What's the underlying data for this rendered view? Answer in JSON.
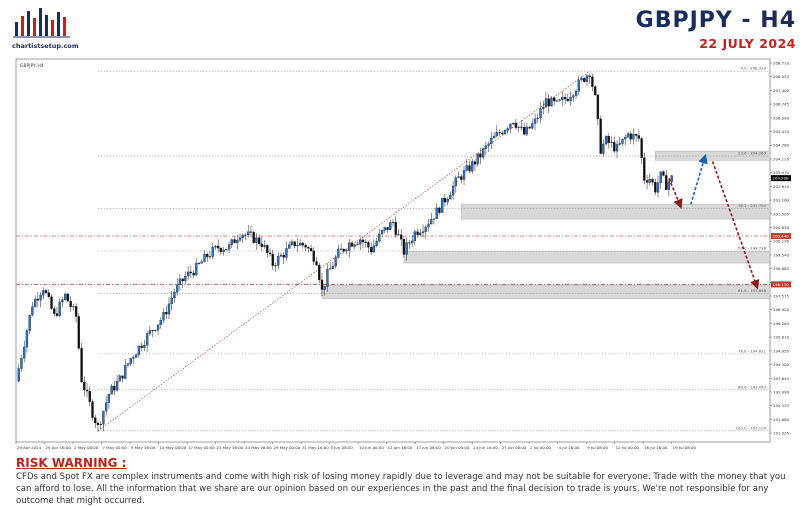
{
  "brand": {
    "logo_text": "chartistsetup.com"
  },
  "header": {
    "title": "GBPJPY - H4",
    "date": "22 JULY 2024"
  },
  "chart_data": {
    "type": "candlestick",
    "symbol_label": "GBPJPY,H4",
    "ylim": [
      190.6,
      208.9
    ],
    "y_ticks": [
      "208.710",
      "208.055",
      "207.400",
      "206.745",
      "206.090",
      "205.435",
      "204.780",
      "204.125",
      "203.470",
      "202.815",
      "202.160",
      "201.505",
      "200.850",
      "200.195",
      "199.540",
      "198.885",
      "198.230",
      "197.575",
      "196.920",
      "196.265",
      "195.610",
      "194.955",
      "194.300",
      "193.645",
      "192.990",
      "192.335",
      "191.680",
      "191.025"
    ],
    "x_ticks": [
      "29 Apr 2024",
      "29 Apr 16:00",
      "2 May 08:00",
      "7 May 00:00",
      "9 May 16:00",
      "14 May 08:00",
      "17 May 00:00",
      "21 May 16:00",
      "24 May 08:00",
      "29 May 00:00",
      "31 May 16:00",
      "5 Jun 08:00",
      "10 Jun 00:00",
      "12 Jun 16:00",
      "17 Jun 08:00",
      "20 Jun 00:00",
      "24 Jun 16:00",
      "27 Jun 08:00",
      "2 Jul 00:00",
      "4 Jul 16:00",
      "9 Jul 08:00",
      "12 Jul 00:00",
      "16 Jul 16:00",
      "19 Jul 08:00"
    ],
    "price_tags": [
      {
        "value": 203.208,
        "label": "203.208",
        "color": "#000000"
      },
      {
        "value": 200.44,
        "label": "200.440",
        "color": "#c0392b"
      },
      {
        "value": 198.13,
        "label": "198.130",
        "color": "#c0392b"
      }
    ],
    "fib_levels": [
      {
        "label": "0.0 - 208.320",
        "value": 208.32
      },
      {
        "label": "23.6 - 204.263",
        "value": 204.263
      },
      {
        "label": "38.2 - 201.754",
        "value": 201.754
      },
      {
        "label": "50.0 - 199.726",
        "value": 199.726
      },
      {
        "label": "61.8 - 197.698",
        "value": 197.698
      },
      {
        "label": "78.6 - 194.811",
        "value": 194.811
      },
      {
        "label": "88.6 - 193.093",
        "value": 193.093
      },
      {
        "label": "100.0 - 191.134",
        "value": 191.134
      }
    ],
    "zones": [
      {
        "from": 204.06,
        "to": 204.5
      },
      {
        "from": 201.25,
        "to": 201.95
      },
      {
        "from": 199.15,
        "to": 199.7
      },
      {
        "from": 197.45,
        "to": 198.1
      }
    ],
    "horizontal_lines": [
      200.44,
      198.13
    ],
    "price_path": [
      [
        0,
        193.5
      ],
      [
        3,
        197.2
      ],
      [
        5,
        198.0
      ],
      [
        7,
        196.6
      ],
      [
        9,
        197.6
      ],
      [
        11,
        196.6
      ],
      [
        12,
        193.6
      ],
      [
        14,
        192.0
      ],
      [
        15,
        191.3
      ],
      [
        17,
        192.9
      ],
      [
        19,
        193.6
      ],
      [
        21,
        194.6
      ],
      [
        23,
        195.3
      ],
      [
        25,
        196.0
      ],
      [
        27,
        196.6
      ],
      [
        29,
        197.8
      ],
      [
        31,
        198.5
      ],
      [
        33,
        198.9
      ],
      [
        35,
        199.5
      ],
      [
        37,
        199.9
      ],
      [
        39,
        199.9
      ],
      [
        41,
        200.6
      ],
      [
        43,
        200.4
      ],
      [
        45,
        200.1
      ],
      [
        47,
        199.1
      ],
      [
        49,
        199.6
      ],
      [
        51,
        200.1
      ],
      [
        53,
        200.0
      ],
      [
        55,
        199.3
      ],
      [
        56,
        197.8
      ],
      [
        57,
        198.6
      ],
      [
        59,
        199.6
      ],
      [
        61,
        200.1
      ],
      [
        63,
        200.3
      ],
      [
        65,
        199.8
      ],
      [
        67,
        200.6
      ],
      [
        69,
        201.1
      ],
      [
        71,
        199.7
      ],
      [
        73,
        200.6
      ],
      [
        75,
        201.0
      ],
      [
        77,
        201.6
      ],
      [
        79,
        202.4
      ],
      [
        81,
        203.2
      ],
      [
        83,
        203.7
      ],
      [
        85,
        204.3
      ],
      [
        87,
        205.0
      ],
      [
        89,
        205.5
      ],
      [
        91,
        206.0
      ],
      [
        93,
        205.3
      ],
      [
        95,
        205.9
      ],
      [
        97,
        206.9
      ],
      [
        99,
        206.7
      ],
      [
        101,
        207.1
      ],
      [
        103,
        207.7
      ],
      [
        105,
        208.3
      ],
      [
        106,
        207.0
      ],
      [
        107,
        204.6
      ],
      [
        108,
        205.0
      ],
      [
        110,
        204.6
      ],
      [
        112,
        205.3
      ],
      [
        114,
        205.1
      ],
      [
        115,
        203.2
      ],
      [
        116,
        203.2
      ],
      [
        117,
        202.7
      ],
      [
        118,
        203.3
      ],
      [
        119,
        202.9
      ],
      [
        120,
        203.2
      ]
    ],
    "projections": [
      {
        "name": "down-to-38.2",
        "from": [
          119.5,
          203.2
        ],
        "to": [
          121.5,
          201.95
        ],
        "color": "#8b1a1a"
      },
      {
        "name": "up-to-23.6",
        "from": [
          123.5,
          201.95
        ],
        "to": [
          126,
          204.15
        ],
        "color": "#1f5fa8"
      },
      {
        "name": "down-to-61.8",
        "from": [
          127.5,
          204.0
        ],
        "to": [
          135.5,
          198.1
        ],
        "color": "#8b1a1a"
      }
    ],
    "fib_anchor": {
      "from": [
        15,
        191.134
      ],
      "to": [
        105,
        208.32
      ]
    }
  },
  "risk": {
    "title": "RISK WARNING :",
    "text": "CFDs and Spot FX are complex instruments and come with high risk of losing money rapidly due to leverage and may not be suitable for everyone. Trade with the money that you can afford to lose. All the information that we share are our opinion based on our experiences in the past and the final decision to trade is yours. We're not responsible for any outcome that might occurred."
  }
}
